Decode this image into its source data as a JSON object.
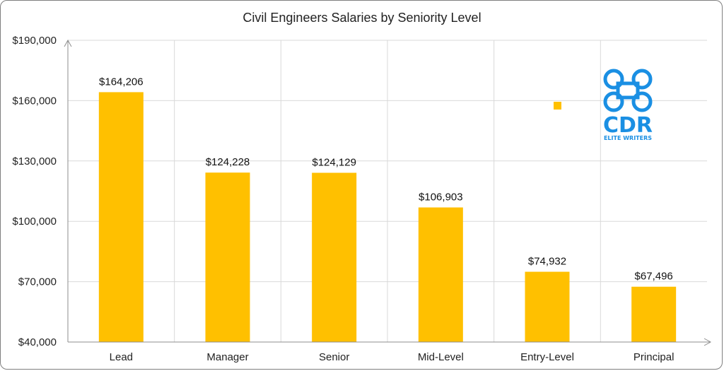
{
  "chart_data": {
    "type": "bar",
    "title": "Civil Engineers Salaries by Seniority Level",
    "xlabel": "",
    "ylabel": "",
    "categories": [
      "Lead",
      "Manager",
      "Senior",
      "Mid-Level",
      "Entry-Level",
      "Principal"
    ],
    "values": [
      164206,
      124228,
      124129,
      106903,
      74932,
      67496
    ],
    "data_labels": [
      "$164,206",
      "$124,228",
      "$124,129",
      "$106,903",
      "$74,932",
      "$67,496"
    ],
    "ylim": [
      40000,
      190000
    ],
    "yticks": [
      40000,
      70000,
      100000,
      130000,
      160000,
      190000
    ],
    "ytick_labels": [
      "$40,000",
      "$70,000",
      "$100,000",
      "$130,000",
      "$160,000",
      "$190,000"
    ],
    "grid": true,
    "legend": "none",
    "bar_color": "#FFC000",
    "grid_color": "#d9d9d9",
    "axis_color": "#8c8c8c"
  },
  "logo": {
    "name": "CDR Elite Writers logo",
    "letters": "CDR",
    "tagline": "ELITE WRITERS",
    "color": "#1a8fe3"
  },
  "marker_color": "#FFC000"
}
